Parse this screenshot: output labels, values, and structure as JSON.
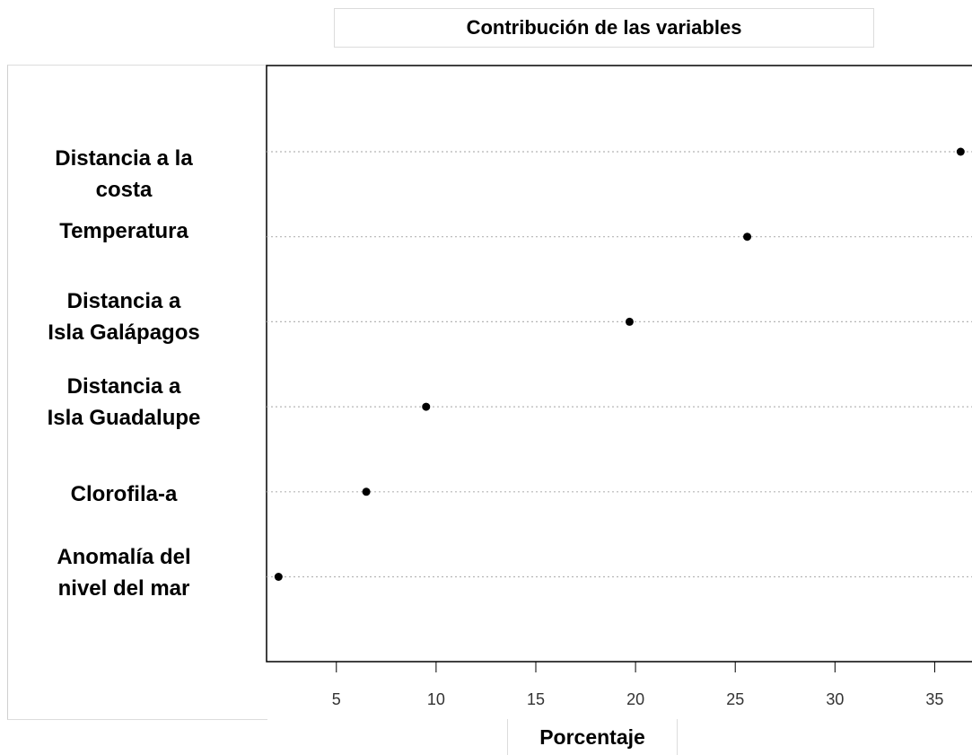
{
  "chart_data": {
    "type": "scatter",
    "title": "Contribución de las variables",
    "xlabel": "Porcentaje",
    "ylabel": "",
    "xlim": [
      1.5,
      37.5
    ],
    "xticks": [
      5,
      10,
      15,
      20,
      25,
      30,
      35
    ],
    "grid": "horizontal dotted",
    "categories": [
      "Distancia a la\ncosta",
      "Temperatura",
      "Distancia a\nIsla Galápagos",
      "Distancia a\nIsla Guadalupe",
      "Clorofila-a",
      "Anomalía del\nnivel del mar"
    ],
    "values": [
      36.3,
      25.6,
      19.7,
      9.5,
      6.5,
      2.1
    ]
  }
}
